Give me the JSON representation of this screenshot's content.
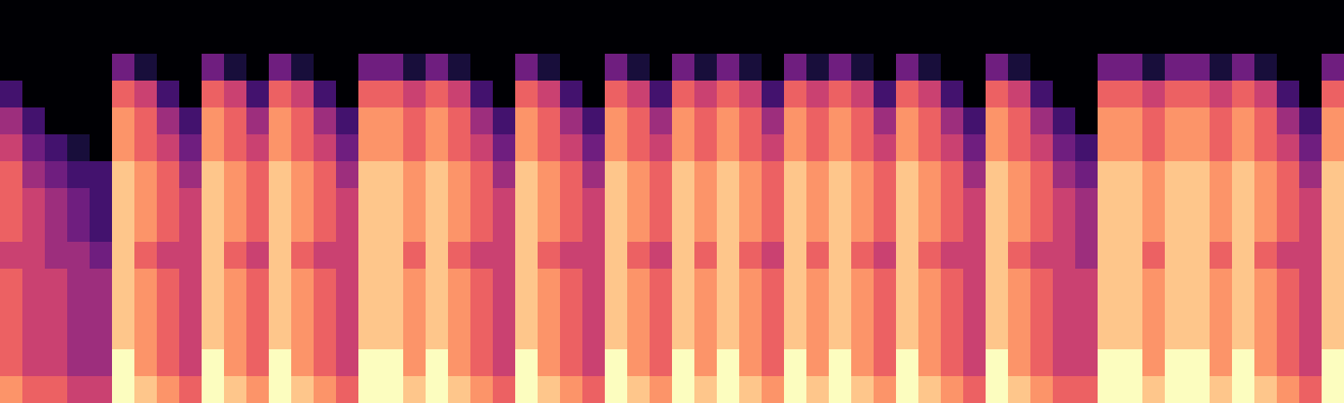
{
  "chart_data": {
    "type": "heatmap",
    "color": "magma",
    "tick_labels": false,
    "zlim": [
      0,
      9
    ],
    "cells": [
      [
        7,
        6,
        6,
        5,
        5,
        9,
        8,
        7,
        6,
        9,
        8,
        7,
        9,
        8,
        7,
        6,
        9,
        9,
        8,
        9,
        8,
        7,
        6,
        9,
        8,
        7,
        6,
        9,
        8,
        7,
        9,
        8,
        9,
        8,
        7,
        9,
        8,
        9,
        8,
        7,
        9,
        8,
        7,
        6,
        9,
        8,
        7,
        6,
        6,
        9,
        9,
        8,
        9,
        9,
        8,
        9,
        8,
        7,
        6,
        9
      ],
      [
        6,
        5,
        5,
        4,
        4,
        9,
        7,
        6,
        5,
        9,
        7,
        6,
        9,
        7,
        6,
        5,
        9,
        9,
        7,
        9,
        7,
        6,
        5,
        9,
        7,
        6,
        5,
        9,
        7,
        6,
        9,
        7,
        9,
        7,
        6,
        9,
        7,
        9,
        7,
        6,
        9,
        7,
        6,
        5,
        9,
        7,
        6,
        5,
        5,
        9,
        9,
        7,
        9,
        9,
        7,
        9,
        7,
        6,
        5,
        9
      ],
      [
        6,
        5,
        5,
        4,
        4,
        8,
        7,
        6,
        5,
        8,
        7,
        6,
        8,
        7,
        6,
        5,
        8,
        8,
        7,
        8,
        7,
        6,
        5,
        8,
        7,
        6,
        5,
        8,
        7,
        6,
        8,
        7,
        8,
        7,
        6,
        8,
        7,
        8,
        7,
        6,
        8,
        7,
        6,
        5,
        8,
        7,
        6,
        5,
        5,
        8,
        8,
        7,
        8,
        8,
        7,
        8,
        7,
        6,
        5,
        8
      ],
      [
        6,
        5,
        5,
        4,
        4,
        8,
        7,
        6,
        5,
        8,
        7,
        6,
        8,
        7,
        6,
        5,
        8,
        8,
        7,
        8,
        7,
        6,
        5,
        8,
        7,
        6,
        5,
        8,
        7,
        6,
        8,
        7,
        8,
        7,
        6,
        8,
        7,
        8,
        7,
        6,
        8,
        7,
        6,
        5,
        8,
        7,
        6,
        5,
        5,
        8,
        8,
        7,
        8,
        8,
        7,
        8,
        7,
        6,
        5,
        8
      ],
      [
        6,
        5,
        5,
        4,
        4,
        8,
        7,
        6,
        5,
        8,
        7,
        6,
        8,
        7,
        6,
        5,
        8,
        8,
        7,
        8,
        7,
        6,
        5,
        8,
        7,
        6,
        5,
        8,
        7,
        6,
        8,
        7,
        8,
        7,
        6,
        8,
        7,
        8,
        7,
        6,
        8,
        7,
        6,
        5,
        8,
        7,
        6,
        5,
        5,
        8,
        8,
        7,
        8,
        8,
        7,
        8,
        7,
        6,
        5,
        8
      ],
      [
        5,
        5,
        4,
        4,
        3,
        8,
        6,
        5,
        5,
        8,
        6,
        5,
        8,
        6,
        5,
        5,
        8,
        8,
        6,
        8,
        6,
        5,
        5,
        8,
        6,
        5,
        5,
        8,
        6,
        5,
        8,
        6,
        8,
        6,
        5,
        8,
        6,
        8,
        6,
        5,
        8,
        6,
        5,
        5,
        8,
        6,
        5,
        5,
        4,
        8,
        8,
        6,
        8,
        8,
        6,
        8,
        6,
        5,
        5,
        8
      ],
      [
        6,
        5,
        4,
        3,
        2,
        8,
        7,
        6,
        5,
        8,
        7,
        6,
        8,
        7,
        6,
        5,
        8,
        8,
        7,
        8,
        7,
        6,
        5,
        8,
        7,
        6,
        5,
        8,
        7,
        6,
        8,
        7,
        8,
        7,
        6,
        8,
        7,
        8,
        7,
        6,
        8,
        7,
        6,
        5,
        8,
        7,
        6,
        5,
        4,
        8,
        8,
        7,
        8,
        8,
        7,
        8,
        7,
        6,
        5,
        8
      ],
      [
        6,
        5,
        4,
        3,
        2,
        8,
        7,
        6,
        5,
        8,
        7,
        6,
        8,
        7,
        6,
        5,
        8,
        8,
        7,
        8,
        7,
        6,
        5,
        8,
        7,
        6,
        5,
        8,
        7,
        6,
        8,
        7,
        8,
        7,
        6,
        8,
        7,
        8,
        7,
        6,
        8,
        7,
        6,
        5,
        8,
        7,
        6,
        5,
        4,
        8,
        8,
        7,
        8,
        8,
        7,
        8,
        7,
        6,
        5,
        8
      ],
      [
        6,
        4,
        3,
        2,
        2,
        8,
        7,
        6,
        4,
        8,
        7,
        6,
        8,
        7,
        6,
        4,
        8,
        8,
        7,
        8,
        7,
        6,
        4,
        8,
        7,
        6,
        4,
        8,
        7,
        6,
        8,
        7,
        8,
        7,
        6,
        8,
        7,
        8,
        7,
        6,
        8,
        7,
        6,
        4,
        8,
        7,
        6,
        4,
        3,
        8,
        8,
        7,
        8,
        8,
        7,
        8,
        7,
        6,
        4,
        8
      ],
      [
        5,
        3,
        2,
        1,
        0,
        7,
        6,
        5,
        3,
        7,
        6,
        5,
        7,
        6,
        5,
        3,
        7,
        7,
        6,
        7,
        6,
        5,
        3,
        7,
        6,
        5,
        3,
        7,
        6,
        5,
        7,
        6,
        7,
        6,
        5,
        7,
        6,
        7,
        6,
        5,
        7,
        6,
        5,
        3,
        7,
        6,
        5,
        3,
        2,
        7,
        7,
        6,
        7,
        7,
        6,
        7,
        6,
        5,
        3,
        7
      ],
      [
        4,
        2,
        0,
        0,
        0,
        7,
        6,
        4,
        2,
        7,
        6,
        4,
        7,
        6,
        4,
        2,
        7,
        7,
        6,
        7,
        6,
        4,
        2,
        7,
        6,
        4,
        2,
        7,
        6,
        4,
        7,
        6,
        7,
        6,
        4,
        7,
        6,
        7,
        6,
        4,
        7,
        6,
        4,
        2,
        7,
        6,
        4,
        2,
        0,
        7,
        7,
        6,
        7,
        7,
        6,
        7,
        6,
        4,
        2,
        7
      ],
      [
        2,
        0,
        0,
        0,
        0,
        6,
        5,
        2,
        0,
        6,
        5,
        2,
        6,
        5,
        2,
        0,
        6,
        6,
        5,
        6,
        5,
        2,
        0,
        6,
        5,
        2,
        0,
        6,
        5,
        2,
        6,
        5,
        6,
        5,
        2,
        6,
        5,
        6,
        5,
        2,
        6,
        5,
        2,
        0,
        6,
        5,
        2,
        0,
        0,
        6,
        6,
        5,
        6,
        6,
        5,
        6,
        5,
        2,
        0,
        6
      ],
      [
        0,
        0,
        0,
        0,
        0,
        3,
        1,
        0,
        0,
        3,
        1,
        0,
        3,
        1,
        0,
        0,
        3,
        3,
        1,
        3,
        1,
        0,
        0,
        3,
        1,
        0,
        0,
        3,
        1,
        0,
        3,
        1,
        3,
        1,
        0,
        3,
        1,
        3,
        1,
        0,
        3,
        1,
        0,
        0,
        3,
        1,
        0,
        0,
        0,
        3,
        3,
        1,
        3,
        3,
        1,
        3,
        1,
        0,
        0,
        3
      ],
      [
        0,
        0,
        0,
        0,
        0,
        0,
        0,
        0,
        0,
        0,
        0,
        0,
        0,
        0,
        0,
        0,
        0,
        0,
        0,
        0,
        0,
        0,
        0,
        0,
        0,
        0,
        0,
        0,
        0,
        0,
        0,
        0,
        0,
        0,
        0,
        0,
        0,
        0,
        0,
        0,
        0,
        0,
        0,
        0,
        0,
        0,
        0,
        0,
        0,
        0,
        0,
        0,
        0,
        0,
        0,
        0,
        0,
        0,
        0,
        0
      ],
      [
        0,
        0,
        0,
        0,
        0,
        0,
        0,
        0,
        0,
        0,
        0,
        0,
        0,
        0,
        0,
        0,
        0,
        0,
        0,
        0,
        0,
        0,
        0,
        0,
        0,
        0,
        0,
        0,
        0,
        0,
        0,
        0,
        0,
        0,
        0,
        0,
        0,
        0,
        0,
        0,
        0,
        0,
        0,
        0,
        0,
        0,
        0,
        0,
        0,
        0,
        0,
        0,
        0,
        0,
        0,
        0,
        0,
        0,
        0,
        0
      ]
    ]
  }
}
